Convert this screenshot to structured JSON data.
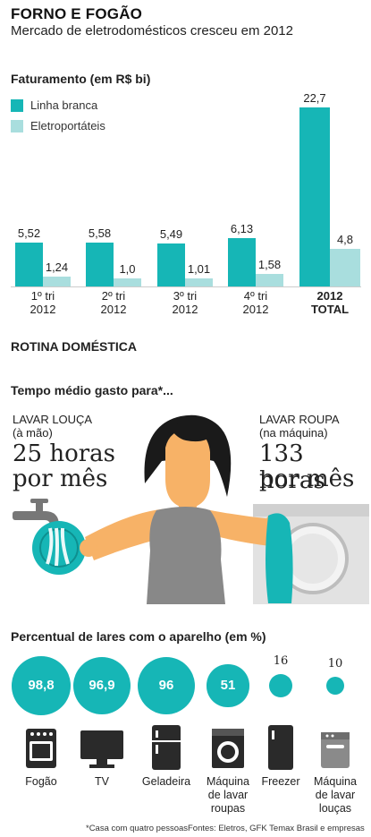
{
  "header": {
    "title": "FORNO E FOGÃO",
    "subtitle": "Mercado de eletrodomésticos cresceu em 2012"
  },
  "colors": {
    "linha_branca": "#16b6b6",
    "eletroportateis": "#a9dede",
    "accent": "#16b6b6"
  },
  "chart_data": [
    {
      "type": "bar",
      "title": "Faturamento (em R$ bi)",
      "categories": [
        "1º tri\n2012",
        "2º tri\n2012",
        "3º tri\n2012",
        "4º tri\n2012",
        "2012\nTOTAL"
      ],
      "category_lines": [
        [
          "1º tri",
          "2012"
        ],
        [
          "2º tri",
          "2012"
        ],
        [
          "3º tri",
          "2012"
        ],
        [
          "4º tri",
          "2012"
        ],
        [
          "2012",
          "TOTAL"
        ]
      ],
      "series": [
        {
          "name": "Linha branca",
          "values": [
            5.52,
            5.58,
            5.49,
            6.13,
            22.7
          ],
          "labels": [
            "5,52",
            "5,58",
            "5,49",
            "6,13",
            "22,7"
          ]
        },
        {
          "name": "Eletroportáteis",
          "values": [
            1.24,
            1.0,
            1.01,
            1.58,
            4.8
          ],
          "labels": [
            "1,24",
            "1,0",
            "1,01",
            "1,58",
            "4,8"
          ]
        }
      ],
      "legend_position": "top-left",
      "ylim": [
        0,
        22.7
      ],
      "grid": false
    },
    {
      "type": "bar",
      "title": "Percentual de lares com o aparelho (em %)",
      "categories": [
        "Fogão",
        "TV",
        "Geladeira",
        "Máquina de lavar roupas",
        "Freezer",
        "Máquina de lavar louças"
      ],
      "values": [
        98.8,
        96.9,
        96,
        51,
        16,
        10
      ],
      "labels": [
        "98,8",
        "96,9",
        "96",
        "51",
        "16",
        "10"
      ]
    }
  ],
  "routine": {
    "heading": "ROTINA DOMÉSTICA",
    "question": "Tempo médio gasto para*...",
    "left": {
      "label1": "LAVAR LOUÇA",
      "label2": "(à mão)",
      "value1": "25 horas",
      "value2": "por mês"
    },
    "right": {
      "label1": "LAVAR ROUPA",
      "label2": "(na máquina)",
      "value1": "133 horas",
      "value2": "por mês"
    }
  },
  "appliances": {
    "labels": [
      [
        "Fogão"
      ],
      [
        "TV"
      ],
      [
        "Geladeira"
      ],
      [
        "Máquina",
        "de lavar",
        "roupas"
      ],
      [
        "Freezer"
      ],
      [
        "Máquina",
        "de lavar",
        "louças"
      ]
    ],
    "icons": [
      "stove-icon",
      "tv-icon",
      "fridge-icon",
      "washing-machine-icon",
      "freezer-icon",
      "dishwasher-icon"
    ]
  },
  "footer": {
    "note": "*Casa com quatro pessoas",
    "sources": "Fontes: Eletros, GFK Temax Brasil e empresas"
  }
}
